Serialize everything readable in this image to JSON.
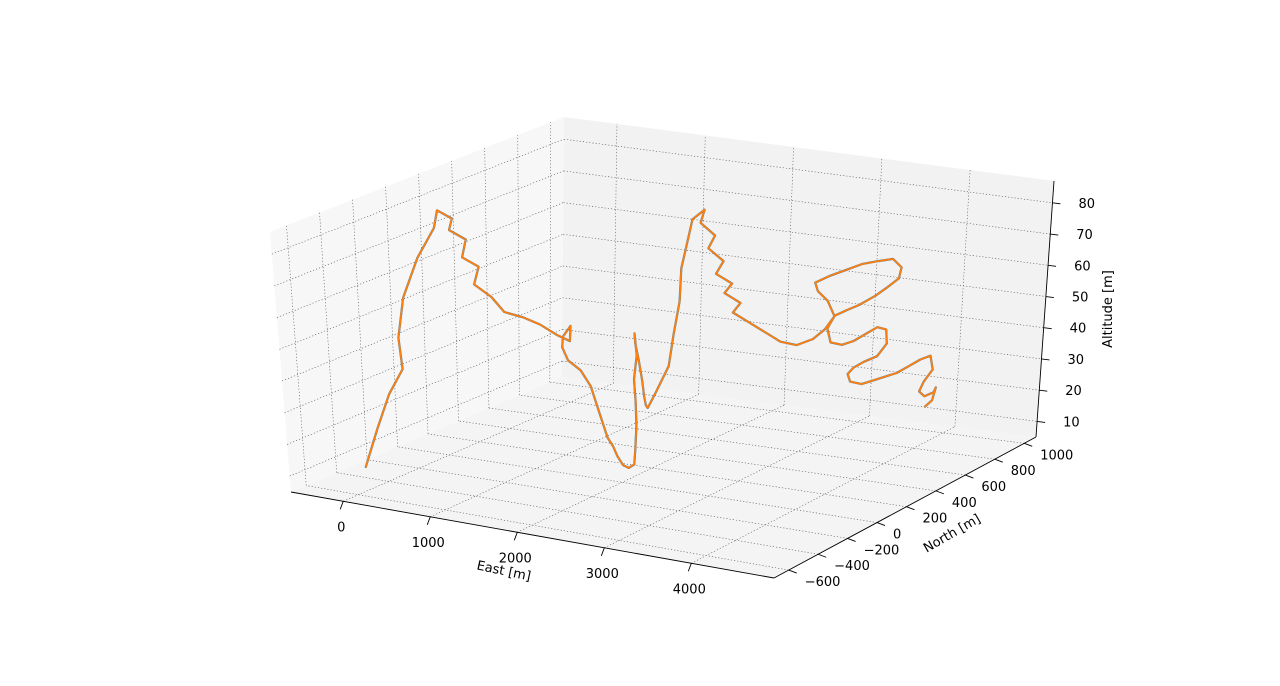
{
  "chart_data": {
    "type": "line",
    "projection": "3d",
    "xlabel": "East [m]",
    "ylabel": "North [m]",
    "zlabel": "Altitude [m]",
    "xticks": [
      0,
      1000,
      2000,
      3000,
      4000
    ],
    "yticks": [
      -600,
      -400,
      -200,
      0,
      200,
      400,
      600,
      800,
      1000
    ],
    "zticks": [
      10,
      20,
      30,
      40,
      50,
      60,
      70,
      80
    ],
    "xlim": [
      -600,
      4950
    ],
    "ylim": [
      -700,
      1080
    ],
    "zlim": [
      5,
      87
    ],
    "grid": true,
    "series": [
      {
        "color": "#1f77b4",
        "points": [
          [
            -220,
            -420,
            9
          ],
          [
            -170,
            -360,
            20
          ],
          [
            -120,
            -300,
            30
          ],
          [
            -60,
            -240,
            37
          ],
          [
            -200,
            -180,
            45
          ],
          [
            -310,
            -80,
            55
          ],
          [
            -350,
            40,
            65
          ],
          [
            -300,
            120,
            73
          ],
          [
            -370,
            180,
            77
          ],
          [
            -280,
            220,
            74
          ],
          [
            -390,
            260,
            69
          ],
          [
            -260,
            290,
            66
          ],
          [
            -380,
            330,
            59
          ],
          [
            -250,
            360,
            56
          ],
          [
            -380,
            400,
            49
          ],
          [
            -240,
            430,
            45
          ],
          [
            -150,
            460,
            40
          ],
          [
            0,
            500,
            38
          ],
          [
            150,
            520,
            36
          ],
          [
            300,
            540,
            33
          ],
          [
            420,
            560,
            31
          ],
          [
            500,
            520,
            37
          ],
          [
            520,
            460,
            35
          ],
          [
            600,
            410,
            33
          ],
          [
            720,
            380,
            30
          ],
          [
            900,
            360,
            28
          ],
          [
            1050,
            340,
            24
          ],
          [
            1150,
            310,
            21
          ],
          [
            1250,
            280,
            18
          ],
          [
            1350,
            250,
            15
          ],
          [
            1450,
            220,
            12
          ],
          [
            1550,
            200,
            10
          ],
          [
            1650,
            170,
            8
          ],
          [
            1750,
            150,
            6
          ],
          [
            1850,
            130,
            6
          ],
          [
            1950,
            110,
            8
          ],
          [
            2000,
            90,
            14
          ],
          [
            2050,
            70,
            22
          ],
          [
            2080,
            50,
            30
          ],
          [
            2100,
            30,
            38
          ],
          [
            2080,
            60,
            45
          ],
          [
            1950,
            120,
            50
          ],
          [
            1850,
            180,
            45
          ],
          [
            1800,
            230,
            38
          ],
          [
            1750,
            280,
            30
          ],
          [
            1700,
            320,
            24
          ],
          [
            1650,
            360,
            20
          ],
          [
            1600,
            400,
            18
          ],
          [
            1620,
            440,
            22
          ],
          [
            1700,
            480,
            30
          ],
          [
            1720,
            500,
            40
          ],
          [
            1750,
            520,
            50
          ],
          [
            1730,
            540,
            60
          ],
          [
            1760,
            560,
            68
          ],
          [
            1780,
            580,
            75
          ],
          [
            1880,
            600,
            78
          ],
          [
            1800,
            620,
            73
          ],
          [
            1930,
            640,
            69
          ],
          [
            1820,
            660,
            64
          ],
          [
            1960,
            680,
            60
          ],
          [
            1840,
            700,
            55
          ],
          [
            1990,
            720,
            52
          ],
          [
            1870,
            740,
            48
          ],
          [
            2020,
            760,
            45
          ],
          [
            1900,
            780,
            41
          ],
          [
            2050,
            800,
            38
          ],
          [
            2200,
            820,
            35
          ],
          [
            2350,
            840,
            32
          ],
          [
            2500,
            860,
            31
          ],
          [
            2650,
            880,
            33
          ],
          [
            2750,
            900,
            36
          ],
          [
            2820,
            920,
            40
          ],
          [
            2700,
            940,
            44
          ],
          [
            2550,
            960,
            46
          ],
          [
            2480,
            980,
            48
          ],
          [
            2600,
            1000,
            50
          ],
          [
            2750,
            1020,
            52
          ],
          [
            2900,
            1040,
            54
          ],
          [
            3050,
            1060,
            55
          ],
          [
            3200,
            1070,
            56
          ],
          [
            3320,
            1060,
            54
          ],
          [
            3330,
            1040,
            51
          ],
          [
            3220,
            1030,
            48
          ],
          [
            3100,
            1020,
            45
          ],
          [
            2950,
            1010,
            42
          ],
          [
            2820,
            1000,
            40
          ],
          [
            2700,
            990,
            38
          ],
          [
            2640,
            980,
            34
          ],
          [
            2700,
            970,
            30
          ],
          [
            2850,
            960,
            30
          ],
          [
            3000,
            950,
            32
          ],
          [
            3150,
            940,
            35
          ],
          [
            3300,
            930,
            38
          ],
          [
            3420,
            920,
            38
          ],
          [
            3460,
            905,
            34
          ],
          [
            3380,
            890,
            30
          ],
          [
            3250,
            880,
            28
          ],
          [
            3150,
            870,
            26
          ],
          [
            3100,
            860,
            24
          ],
          [
            3150,
            850,
            22
          ],
          [
            3300,
            840,
            22
          ],
          [
            3450,
            830,
            24
          ],
          [
            3600,
            820,
            26
          ],
          [
            3750,
            810,
            28
          ],
          [
            3900,
            800,
            31
          ],
          [
            4050,
            790,
            34
          ],
          [
            4180,
            780,
            36
          ],
          [
            4230,
            770,
            32
          ],
          [
            4150,
            760,
            28
          ],
          [
            4120,
            750,
            25
          ],
          [
            4200,
            740,
            24
          ],
          [
            4320,
            730,
            26
          ],
          [
            4360,
            720,
            28
          ],
          [
            4340,
            710,
            24
          ],
          [
            4280,
            700,
            22
          ]
        ]
      },
      {
        "color": "#ff7f0e",
        "points": [
          [
            -220,
            -420,
            9
          ],
          [
            -170,
            -360,
            20
          ],
          [
            -120,
            -300,
            30
          ],
          [
            -60,
            -240,
            37
          ],
          [
            -200,
            -180,
            45
          ],
          [
            -310,
            -80,
            55
          ],
          [
            -350,
            40,
            65
          ],
          [
            -300,
            120,
            73
          ],
          [
            -370,
            180,
            77
          ],
          [
            -280,
            220,
            74
          ],
          [
            -390,
            260,
            69
          ],
          [
            -260,
            290,
            66
          ],
          [
            -380,
            330,
            59
          ],
          [
            -250,
            360,
            56
          ],
          [
            -380,
            400,
            49
          ],
          [
            -240,
            430,
            45
          ],
          [
            -150,
            460,
            40
          ],
          [
            0,
            500,
            38
          ],
          [
            150,
            520,
            36
          ],
          [
            300,
            540,
            33
          ],
          [
            420,
            560,
            31
          ],
          [
            500,
            520,
            37
          ],
          [
            520,
            460,
            35
          ],
          [
            600,
            410,
            33
          ],
          [
            720,
            380,
            30
          ],
          [
            900,
            360,
            28
          ],
          [
            1050,
            340,
            24
          ],
          [
            1150,
            310,
            21
          ],
          [
            1250,
            280,
            18
          ],
          [
            1350,
            250,
            15
          ],
          [
            1450,
            220,
            12
          ],
          [
            1550,
            200,
            10
          ],
          [
            1650,
            170,
            8
          ],
          [
            1750,
            150,
            6
          ],
          [
            1850,
            130,
            6
          ],
          [
            1950,
            110,
            8
          ],
          [
            2000,
            90,
            14
          ],
          [
            2050,
            70,
            22
          ],
          [
            2080,
            50,
            30
          ],
          [
            2100,
            30,
            38
          ],
          [
            2080,
            60,
            45
          ],
          [
            1950,
            120,
            50
          ],
          [
            1850,
            180,
            45
          ],
          [
            1800,
            230,
            38
          ],
          [
            1750,
            280,
            30
          ],
          [
            1700,
            320,
            24
          ],
          [
            1650,
            360,
            20
          ],
          [
            1600,
            400,
            18
          ],
          [
            1620,
            440,
            22
          ],
          [
            1700,
            480,
            30
          ],
          [
            1720,
            500,
            40
          ],
          [
            1750,
            520,
            50
          ],
          [
            1730,
            540,
            60
          ],
          [
            1760,
            560,
            68
          ],
          [
            1780,
            580,
            75
          ],
          [
            1880,
            600,
            78
          ],
          [
            1800,
            620,
            73
          ],
          [
            1930,
            640,
            69
          ],
          [
            1820,
            660,
            64
          ],
          [
            1960,
            680,
            60
          ],
          [
            1840,
            700,
            55
          ],
          [
            1990,
            720,
            52
          ],
          [
            1870,
            740,
            48
          ],
          [
            2020,
            760,
            45
          ],
          [
            1900,
            780,
            41
          ],
          [
            2050,
            800,
            38
          ],
          [
            2200,
            820,
            35
          ],
          [
            2350,
            840,
            32
          ],
          [
            2500,
            860,
            31
          ],
          [
            2650,
            880,
            33
          ],
          [
            2750,
            900,
            36
          ],
          [
            2820,
            920,
            40
          ],
          [
            2700,
            940,
            44
          ],
          [
            2550,
            960,
            46
          ],
          [
            2480,
            980,
            48
          ],
          [
            2600,
            1000,
            50
          ],
          [
            2750,
            1020,
            52
          ],
          [
            2900,
            1040,
            54
          ],
          [
            3050,
            1060,
            55
          ],
          [
            3200,
            1070,
            56
          ],
          [
            3320,
            1060,
            54
          ],
          [
            3330,
            1040,
            51
          ],
          [
            3220,
            1030,
            48
          ],
          [
            3100,
            1020,
            45
          ],
          [
            2950,
            1010,
            42
          ],
          [
            2820,
            1000,
            40
          ],
          [
            2700,
            990,
            38
          ],
          [
            2640,
            980,
            34
          ],
          [
            2700,
            970,
            30
          ],
          [
            2850,
            960,
            30
          ],
          [
            3000,
            950,
            32
          ],
          [
            3150,
            940,
            35
          ],
          [
            3300,
            930,
            38
          ],
          [
            3420,
            920,
            38
          ],
          [
            3460,
            905,
            34
          ],
          [
            3380,
            890,
            30
          ],
          [
            3250,
            880,
            28
          ],
          [
            3150,
            870,
            26
          ],
          [
            3100,
            860,
            24
          ],
          [
            3150,
            850,
            22
          ],
          [
            3300,
            840,
            22
          ],
          [
            3450,
            830,
            24
          ],
          [
            3600,
            820,
            26
          ],
          [
            3750,
            810,
            28
          ],
          [
            3900,
            800,
            31
          ],
          [
            4050,
            790,
            34
          ],
          [
            4180,
            780,
            36
          ],
          [
            4230,
            770,
            32
          ],
          [
            4150,
            760,
            28
          ],
          [
            4120,
            750,
            25
          ],
          [
            4200,
            740,
            24
          ],
          [
            4320,
            730,
            26
          ],
          [
            4360,
            720,
            28
          ],
          [
            4340,
            710,
            24
          ],
          [
            4280,
            700,
            22
          ]
        ]
      }
    ]
  }
}
